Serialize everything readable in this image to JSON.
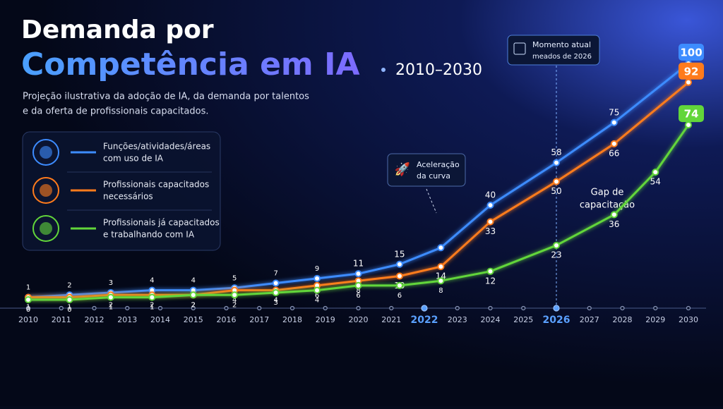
{
  "chart_data": {
    "type": "line",
    "title": [
      "Demanda por",
      "Competência em IA"
    ],
    "period": "2010–2030",
    "subtitle": [
      "Projeção ilustrativa da adoção de IA, da demanda por talentos",
      "e da oferta de profissionais capacitados."
    ],
    "xlim": [
      2010,
      2030
    ],
    "xticks": [
      2010,
      2011,
      2012,
      2013,
      2014,
      2015,
      2016,
      2017,
      2018,
      2019,
      2020,
      2021,
      2022,
      2023,
      2024,
      2025,
      2026,
      2027,
      2028,
      2029,
      2030
    ],
    "highlight_years": [
      2022,
      2026
    ],
    "ylim": [
      0,
      100
    ],
    "series": [
      {
        "name": [
          "Funções/atividades/áreas",
          "com uso de IA"
        ],
        "color": "#3d8cff",
        "x": [
          2010,
          2011.25,
          2012.5,
          2013.75,
          2015,
          2016.25,
          2017.5,
          2018.75,
          2020,
          2021.25,
          2022.5,
          2024,
          2026,
          2027.75,
          2030
        ],
        "values": [
          1,
          2,
          3,
          4,
          4,
          5,
          7,
          9,
          11,
          15,
          22,
          40,
          58,
          75,
          100
        ],
        "value_labels": [
          "1",
          "2",
          "3",
          "4",
          "4",
          "5",
          "7",
          "9",
          "11",
          "15",
          null,
          "40",
          "58",
          "75",
          "100"
        ]
      },
      {
        "name": [
          "Profissionais capacitados",
          "necessários"
        ],
        "color": "#ff7b1c",
        "x": [
          2010,
          2011.25,
          2012.5,
          2013.75,
          2015,
          2016.25,
          2017.5,
          2018.75,
          2020,
          2021.25,
          2022.5,
          2024,
          2026,
          2027.75,
          2030
        ],
        "values": [
          1,
          1,
          2,
          2,
          2,
          4,
          4,
          6,
          8,
          10,
          14,
          33,
          50,
          66,
          92
        ],
        "value_labels": [
          "1",
          "1",
          "2",
          "2",
          "2",
          "4",
          "4",
          "6",
          "8",
          "10",
          "14",
          "33",
          "50",
          "66",
          "92"
        ]
      },
      {
        "name": [
          "Profissionais já capacitados",
          "e trabalhando com IA"
        ],
        "color": "#62d63a",
        "x": [
          2010,
          2011.25,
          2012.5,
          2013.75,
          2015,
          2016.25,
          2017.5,
          2018.75,
          2020,
          2021.25,
          2022.5,
          2024,
          2026,
          2027.75,
          2029,
          2030
        ],
        "values": [
          0,
          0,
          1,
          1,
          2,
          2,
          3,
          4,
          6,
          6,
          8,
          12,
          23,
          36,
          54,
          74
        ],
        "value_labels": [
          "0",
          "0",
          "1",
          "1",
          "2",
          "2",
          "3",
          "4",
          "6",
          "6",
          "8",
          "12",
          "23",
          "36",
          "54",
          "74"
        ]
      }
    ],
    "annotations": {
      "current": [
        "Momento atual",
        "meados de 2026"
      ],
      "acceleration": [
        "Aceleração",
        "da curva"
      ],
      "gap": [
        "Gap de",
        "capacitação"
      ]
    }
  }
}
